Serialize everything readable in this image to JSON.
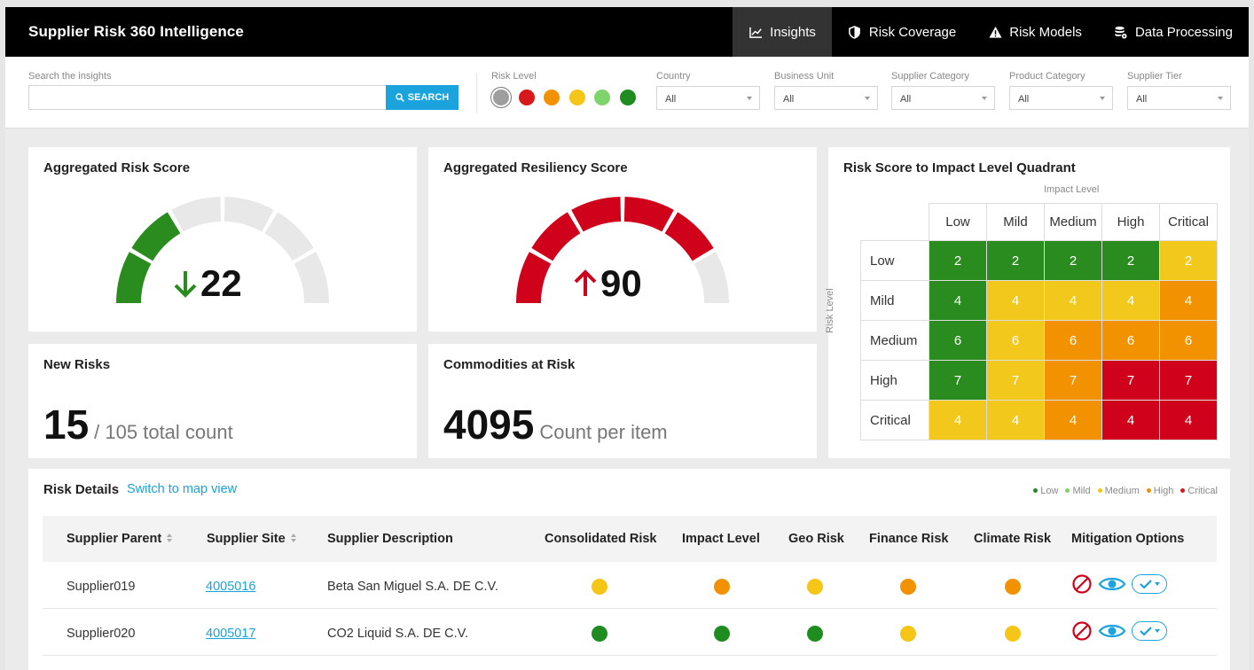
{
  "app": {
    "title": "Supplier Risk 360 Intelligence"
  },
  "nav": [
    {
      "label": "Insights",
      "icon": "chart-line-icon",
      "active": true
    },
    {
      "label": "Risk Coverage",
      "icon": "shield-icon",
      "active": false
    },
    {
      "label": "Risk Models",
      "icon": "warning-icon",
      "active": false
    },
    {
      "label": "Data Processing",
      "icon": "database-cog-icon",
      "active": false
    }
  ],
  "filters": {
    "search_label": "Search the insights",
    "search_value": "",
    "search_button": "SEARCH",
    "risk_level_label": "Risk Level",
    "risk_level_colors": [
      "#9e9e9e",
      "#d7191c",
      "#f39200",
      "#f5c518",
      "#7ed46b",
      "#1e8c1e"
    ],
    "risk_level_selected": 0,
    "dropdowns": [
      {
        "label": "Country",
        "value": "All"
      },
      {
        "label": "Business Unit",
        "value": "All"
      },
      {
        "label": "Supplier Category",
        "value": "All"
      },
      {
        "label": "Product Category",
        "value": "All"
      },
      {
        "label": "Supplier Tier",
        "value": "All"
      }
    ]
  },
  "cards": {
    "risk_score": {
      "title": "Aggregated Risk Score",
      "value": "22",
      "trend": "down",
      "filled_segments": 2,
      "total_segments": 6,
      "color": "#2a8c1f"
    },
    "resiliency_score": {
      "title": "Aggregated Resiliency Score",
      "value": "90",
      "trend": "up",
      "filled_segments": 5,
      "total_segments": 6,
      "color": "#d0021b"
    },
    "new_risks": {
      "title": "New Risks",
      "value": "15",
      "subtitle": "/ 105 total count"
    },
    "commodities": {
      "title": "Commodities at Risk",
      "value": "4095",
      "subtitle": "Count per item"
    }
  },
  "quadrant": {
    "title": "Risk Score to Impact Level Quadrant",
    "x_axis_label": "Impact Level",
    "y_axis_label": "Risk Level",
    "columns": [
      "Low",
      "Mild",
      "Medium",
      "High",
      "Critical"
    ],
    "rows": [
      {
        "label": "Low",
        "values": [
          "2",
          "2",
          "2",
          "2",
          "2"
        ],
        "levels": [
          "g",
          "g",
          "g",
          "g",
          "y"
        ]
      },
      {
        "label": "Mild",
        "values": [
          "4",
          "4",
          "4",
          "4",
          "4"
        ],
        "levels": [
          "g",
          "y",
          "y",
          "y",
          "o"
        ]
      },
      {
        "label": "Medium",
        "values": [
          "6",
          "6",
          "6",
          "6",
          "6"
        ],
        "levels": [
          "g",
          "y",
          "o",
          "o",
          "o"
        ]
      },
      {
        "label": "High",
        "values": [
          "7",
          "7",
          "7",
          "7",
          "7"
        ],
        "levels": [
          "g",
          "y",
          "o",
          "r",
          "r"
        ]
      },
      {
        "label": "Critical",
        "values": [
          "4",
          "4",
          "4",
          "4",
          "4"
        ],
        "levels": [
          "y",
          "y",
          "o",
          "r",
          "r"
        ]
      }
    ],
    "level_colors": {
      "g": "#2a8c1f",
      "y": "#f3c81c",
      "o": "#f39200",
      "r": "#d0021b"
    }
  },
  "risk_details": {
    "title": "Risk Details",
    "map_link": "Switch to map view",
    "legend": [
      {
        "label": "Low",
        "color": "#1e8c1e"
      },
      {
        "label": "Mild",
        "color": "#7ed46b"
      },
      {
        "label": "Medium",
        "color": "#f5c518"
      },
      {
        "label": "High",
        "color": "#f39200"
      },
      {
        "label": "Critical",
        "color": "#d7191c"
      }
    ],
    "columns": [
      "Supplier Parent",
      "Supplier Site",
      "Supplier Description",
      "Consolidated Risk",
      "Impact Level",
      "Geo Risk",
      "Finance Risk",
      "Climate Risk",
      "Mitigation Options"
    ],
    "rows": [
      {
        "parent": "Supplier019",
        "site": "4005016",
        "description": "Beta San Miguel S.A. DE C.V.",
        "risks": [
          "#f5c518",
          "#f39200",
          "#f5c518",
          "#f39200",
          "#f39200"
        ]
      },
      {
        "parent": "Supplier020",
        "site": "4005017",
        "description": "CO2 Liquid S.A. DE C.V.",
        "risks": [
          "#1e8c1e",
          "#1e8c1e",
          "#1e8c1e",
          "#f5c518",
          "#f5c518"
        ]
      }
    ]
  }
}
